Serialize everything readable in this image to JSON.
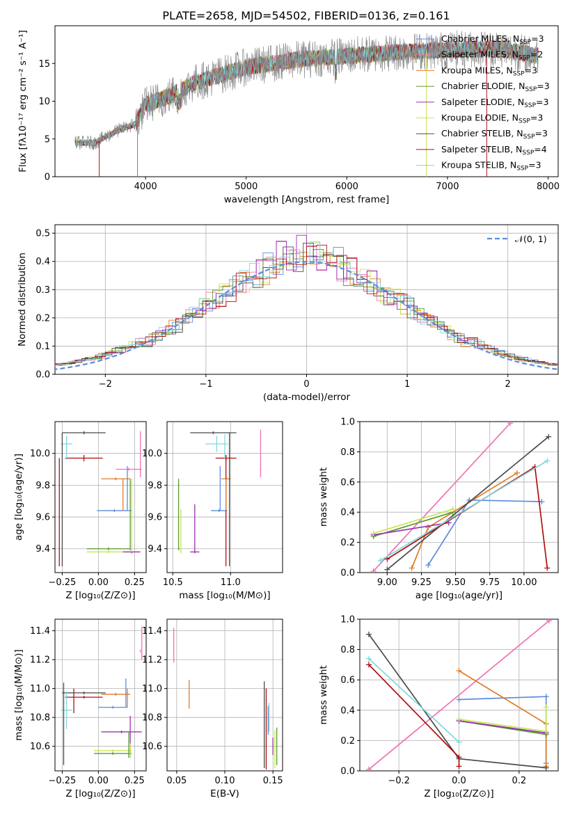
{
  "figure": {
    "title": "PLATE=2658, MJD=54502, FIBERID=0136, z=0.161"
  },
  "colors": {
    "Chabrier MILES": "#5b8bdc",
    "Salpeter MILES": "#ef72b4",
    "Kroupa MILES": "#e07b22",
    "Chabrier ELODIE": "#5a9a2c",
    "Salpeter ELODIE": "#9a2fb5",
    "Kroupa ELODIE": "#c6e555",
    "Chabrier STELIB": "#4a4a4a",
    "Salpeter STELIB": "#b01010",
    "Kroupa STELIB": "#7fd8e0",
    "normal": "#5b8bdc"
  },
  "chart_data": [
    {
      "id": "spectrum",
      "type": "line",
      "xlabel": "wavelength [Angstrom, rest frame]",
      "ylabel": "Flux [fλ10⁻¹⁷ erg cm⁻² s⁻¹ A⁻¹]",
      "xlim": [
        3100,
        8100
      ],
      "ylim": [
        0,
        20
      ],
      "xticks": [
        4000,
        5000,
        6000,
        7000,
        8000
      ],
      "yticks": [
        0,
        5,
        10,
        15
      ],
      "grid": false,
      "legend_position": "upper-right",
      "x": [
        3300,
        3500,
        3700,
        3900,
        4000,
        4200,
        4500,
        5000,
        5500,
        6000,
        6500,
        7000,
        7500,
        7900
      ],
      "y": [
        4.5,
        4.5,
        6.0,
        7.0,
        9.5,
        10.5,
        12.5,
        14.5,
        15.5,
        16.0,
        16.5,
        16.8,
        17.0,
        16.0
      ],
      "legend": [
        {
          "model": "Chabrier MILES",
          "nssp": "3"
        },
        {
          "model": "Salpeter MILES",
          "nssp": "2"
        },
        {
          "model": "Kroupa MILES",
          "nssp": "3"
        },
        {
          "model": "Chabrier ELODIE",
          "nssp": "3"
        },
        {
          "model": "Salpeter ELODIE",
          "nssp": "3"
        },
        {
          "model": "Kroupa ELODIE",
          "nssp": "3"
        },
        {
          "model": "Chabrier STELIB",
          "nssp": "3"
        },
        {
          "model": "Salpeter STELIB",
          "nssp": "4"
        },
        {
          "model": "Kroupa STELIB",
          "nssp": "3"
        }
      ]
    },
    {
      "id": "residuals",
      "type": "line",
      "xlabel": "(data-model)/error",
      "ylabel": "Normed distribution",
      "xlim": [
        -2.5,
        2.5
      ],
      "ylim": [
        0,
        0.53
      ],
      "xticks": [
        -2,
        -1,
        0,
        1,
        2
      ],
      "yticks": [
        0.0,
        0.1,
        0.2,
        0.3,
        0.4,
        0.5
      ],
      "grid": true,
      "legend_position": "upper-right",
      "normal_label": "𝒩(0, 1)",
      "normal": {
        "mu": 0,
        "sigma": 1
      }
    },
    {
      "id": "age_vs_Z",
      "type": "scatter",
      "xlabel": "Z [log₁₀(Z/Z⊙)]",
      "ylabel": "age [log₁₀(age/yr)]",
      "xlim": [
        -0.3,
        0.33
      ],
      "ylim": [
        9.25,
        10.2
      ],
      "xticks": [
        -0.25,
        0.0,
        0.25
      ],
      "yticks": [
        9.4,
        9.6,
        9.8,
        10.0
      ],
      "grid": true,
      "crosses": [
        {
          "model": "Chabrier STELIB",
          "x": -0.1,
          "xerr": 0.15,
          "y": 10.13,
          "yerr": 0.01
        },
        {
          "model": "Kroupa STELIB",
          "x": -0.22,
          "xerr": 0.04,
          "y": 10.06,
          "yerr": 0.05
        },
        {
          "model": "Salpeter STELIB",
          "x": -0.1,
          "xerr": 0.13,
          "y": 9.97,
          "yerr": 0.02
        },
        {
          "model": "Salpeter MILES",
          "x": 0.21,
          "xerr": 0.09,
          "y": 9.9,
          "yerr": 0.0
        },
        {
          "model": "Kroupa MILES",
          "x": 0.12,
          "xerr": 0.1,
          "y": 9.84,
          "yerr": 0.0
        },
        {
          "model": "Chabrier MILES",
          "x": 0.11,
          "xerr": 0.12,
          "y": 9.64,
          "yerr": 0.0
        },
        {
          "model": "Chabrier ELODIE",
          "x": 0.07,
          "xerr": 0.15,
          "y": 9.4,
          "yerr": 0.0
        },
        {
          "model": "Kroupa ELODIE",
          "x": 0.07,
          "xerr": 0.15,
          "y": 9.38,
          "yerr": 0.0
        },
        {
          "model": "Salpeter ELODIE",
          "x": 0.23,
          "xerr": 0.06,
          "y": 9.38,
          "yerr": 0.0
        }
      ]
    },
    {
      "id": "age_vs_mass",
      "type": "scatter",
      "xlabel": "mass [log₁₀(M/M⊙)]",
      "ylabel": "",
      "xlim": [
        10.45,
        11.45
      ],
      "ylim": [
        9.25,
        10.2
      ],
      "xticks": [
        10.5,
        11.0
      ],
      "yticks": [
        9.4,
        9.6,
        9.8,
        10.0
      ],
      "grid": true,
      "crosses": [
        {
          "model": "Chabrier STELIB",
          "x": 10.85,
          "xerr": 0.2,
          "y": 10.13,
          "yerr": 0.0
        },
        {
          "model": "Kroupa STELIB",
          "x": 10.88,
          "xerr": 0.1,
          "y": 10.06,
          "yerr": 0.05
        },
        {
          "model": "Salpeter STELIB",
          "x": 10.96,
          "xerr": 0.09,
          "y": 9.97,
          "yerr": 0.02
        },
        {
          "model": "Salpeter MILES",
          "x": 11.26,
          "xerr": 0.0,
          "y": 9.9,
          "yerr": 0.0
        },
        {
          "model": "Kroupa MILES",
          "x": 10.96,
          "xerr": 0.04,
          "y": 9.84,
          "yerr": 0.0
        },
        {
          "model": "Chabrier MILES",
          "x": 10.9,
          "xerr": 0.07,
          "y": 9.64,
          "yerr": 0.0
        },
        {
          "model": "Chabrier ELODIE",
          "x": 10.55,
          "xerr": 0.0,
          "y": 9.4,
          "yerr": 0.0
        },
        {
          "model": "Kroupa ELODIE",
          "x": 10.57,
          "xerr": 0.0,
          "y": 9.38,
          "yerr": 0.0
        },
        {
          "model": "Salpeter ELODIE",
          "x": 10.69,
          "xerr": 0.04,
          "y": 9.38,
          "yerr": 0.0
        }
      ]
    },
    {
      "id": "weight_vs_age",
      "type": "line",
      "xlabel": "age [log₁₀(age/yr)]",
      "ylabel": "mass weight",
      "xlim": [
        8.8,
        10.25
      ],
      "ylim": [
        0.0,
        1.0
      ],
      "xticks": [
        9.0,
        9.25,
        9.5,
        9.75,
        10.0
      ],
      "yticks": [
        0.0,
        0.2,
        0.4,
        0.6,
        0.8,
        1.0
      ],
      "grid": true,
      "series": [
        {
          "model": "Chabrier MILES",
          "x": [
            9.3,
            9.6,
            10.13
          ],
          "y": [
            0.05,
            0.48,
            0.47
          ]
        },
        {
          "model": "Salpeter MILES",
          "x": [
            8.9,
            9.9
          ],
          "y": [
            0.01,
            0.99
          ]
        },
        {
          "model": "Kroupa MILES",
          "x": [
            9.18,
            9.3,
            9.95
          ],
          "y": [
            0.03,
            0.3,
            0.66
          ]
        },
        {
          "model": "Chabrier ELODIE",
          "x": [
            8.9,
            9.48
          ],
          "y": [
            0.24,
            0.4
          ]
        },
        {
          "model": "Salpeter ELODIE",
          "x": [
            8.9,
            9.45
          ],
          "y": [
            0.25,
            0.33
          ]
        },
        {
          "model": "Kroupa ELODIE",
          "x": [
            8.9,
            9.48
          ],
          "y": [
            0.26,
            0.42
          ]
        },
        {
          "model": "Chabrier STELIB",
          "x": [
            9.0,
            10.18
          ],
          "y": [
            0.02,
            0.9
          ]
        },
        {
          "model": "Salpeter STELIB",
          "x": [
            9.0,
            10.08,
            10.17
          ],
          "y": [
            0.09,
            0.7,
            0.03
          ]
        },
        {
          "model": "Kroupa STELIB",
          "x": [
            8.95,
            10.17
          ],
          "y": [
            0.08,
            0.74
          ]
        }
      ]
    },
    {
      "id": "mass_vs_Z",
      "type": "scatter",
      "xlabel": "Z [log₁₀(Z/Z⊙)]",
      "ylabel": "mass [log₁₀(M/M⊙)]",
      "xlim": [
        -0.3,
        0.33
      ],
      "ylim": [
        10.43,
        11.48
      ],
      "xticks": [
        -0.25,
        0.0,
        0.25
      ],
      "yticks": [
        10.6,
        10.8,
        11.0,
        11.2,
        11.4
      ],
      "grid": true,
      "crosses": [
        {
          "model": "Salpeter MILES",
          "x": 0.29,
          "xerr": 0.0,
          "y": 11.26,
          "yerr": 0.0
        },
        {
          "model": "Chabrier STELIB",
          "x": -0.1,
          "xerr": 0.15,
          "y": 10.97,
          "yerr": 0.0
        },
        {
          "model": "Kroupa MILES",
          "x": 0.12,
          "xerr": 0.1,
          "y": 10.96,
          "yerr": 0.0
        },
        {
          "model": "Salpeter STELIB",
          "x": -0.1,
          "xerr": 0.13,
          "y": 10.94,
          "yerr": 0.0
        },
        {
          "model": "Chabrier MILES",
          "x": 0.1,
          "xerr": 0.1,
          "y": 10.87,
          "yerr": 0.0
        },
        {
          "model": "Kroupa STELIB",
          "x": -0.22,
          "xerr": 0.04,
          "y": 10.85,
          "yerr": 0.0
        },
        {
          "model": "Salpeter ELODIE",
          "x": 0.16,
          "xerr": 0.14,
          "y": 10.7,
          "yerr": 0.0
        },
        {
          "model": "Kroupa ELODIE",
          "x": 0.1,
          "xerr": 0.13,
          "y": 10.57,
          "yerr": 0.0
        },
        {
          "model": "Chabrier ELODIE",
          "x": 0.1,
          "xerr": 0.13,
          "y": 10.55,
          "yerr": 0.0
        }
      ]
    },
    {
      "id": "mass_vs_ebv",
      "type": "scatter",
      "xlabel": "E(B-V)",
      "ylabel": "",
      "xlim": [
        0.04,
        0.16
      ],
      "ylim": [
        10.43,
        11.48
      ],
      "xticks": [
        0.05,
        0.1,
        0.15
      ],
      "yticks": [
        10.6,
        10.8,
        11.0,
        11.2,
        11.4
      ],
      "grid": true,
      "crosses": [
        {
          "model": "Salpeter MILES",
          "x": 0.047,
          "xerr": 0.0,
          "y": 11.3,
          "yerr": 0.12
        },
        {
          "model": "Kroupa MILES",
          "x": 0.063,
          "xerr": 0.0,
          "y": 10.96,
          "yerr": 0.1
        },
        {
          "model": "Chabrier STELIB",
          "x": 0.141,
          "xerr": 0.0,
          "y": 10.75,
          "yerr": 0.3
        },
        {
          "model": "Salpeter STELIB",
          "x": 0.143,
          "xerr": 0.0,
          "y": 10.72,
          "yerr": 0.28
        },
        {
          "model": "Kroupa STELIB",
          "x": 0.146,
          "xerr": 0.0,
          "y": 10.8,
          "yerr": 0.1
        },
        {
          "model": "Chabrier MILES",
          "x": 0.145,
          "xerr": 0.0,
          "y": 10.78,
          "yerr": 0.1
        },
        {
          "model": "Kroupa ELODIE",
          "x": 0.152,
          "xerr": 0.0,
          "y": 10.58,
          "yerr": 0.13
        },
        {
          "model": "Chabrier ELODIE",
          "x": 0.154,
          "xerr": 0.0,
          "y": 10.6,
          "yerr": 0.13
        },
        {
          "model": "Salpeter ELODIE",
          "x": 0.15,
          "xerr": 0.0,
          "y": 10.6,
          "yerr": 0.06
        }
      ]
    },
    {
      "id": "weight_vs_Z",
      "type": "line",
      "xlabel": "Z [log₁₀(Z/Z⊙)]",
      "ylabel": "mass weight",
      "xlim": [
        -0.33,
        0.33
      ],
      "ylim": [
        0.0,
        1.0
      ],
      "xticks": [
        -0.2,
        0.0,
        0.2
      ],
      "yticks": [
        0.0,
        0.2,
        0.4,
        0.6,
        0.8,
        1.0
      ],
      "grid": true,
      "series": [
        {
          "model": "Chabrier MILES",
          "x": [
            0.0,
            0.29,
            0.29
          ],
          "y": [
            0.47,
            0.49,
            0.05
          ]
        },
        {
          "model": "Salpeter MILES",
          "x": [
            -0.3,
            0.3
          ],
          "y": [
            0.01,
            0.99
          ]
        },
        {
          "model": "Kroupa MILES",
          "x": [
            0.0,
            0.29,
            0.29
          ],
          "y": [
            0.66,
            0.31,
            0.03
          ]
        },
        {
          "model": "Chabrier ELODIE",
          "x": [
            0.0,
            0.29
          ],
          "y": [
            0.33,
            0.24
          ]
        },
        {
          "model": "Salpeter ELODIE",
          "x": [
            0.0,
            0.29
          ],
          "y": [
            0.33,
            0.25
          ]
        },
        {
          "model": "Kroupa ELODIE",
          "x": [
            0.0,
            0.29,
            0.29
          ],
          "y": [
            0.34,
            0.26,
            0.42
          ]
        },
        {
          "model": "Chabrier STELIB",
          "x": [
            -0.3,
            0.0,
            0.29
          ],
          "y": [
            0.9,
            0.08,
            0.02
          ]
        },
        {
          "model": "Salpeter STELIB",
          "x": [
            -0.3,
            0.0,
            0.0
          ],
          "y": [
            0.7,
            0.09,
            0.03
          ]
        },
        {
          "model": "Kroupa STELIB",
          "x": [
            -0.3,
            0.0
          ],
          "y": [
            0.74,
            0.19
          ]
        }
      ]
    }
  ]
}
